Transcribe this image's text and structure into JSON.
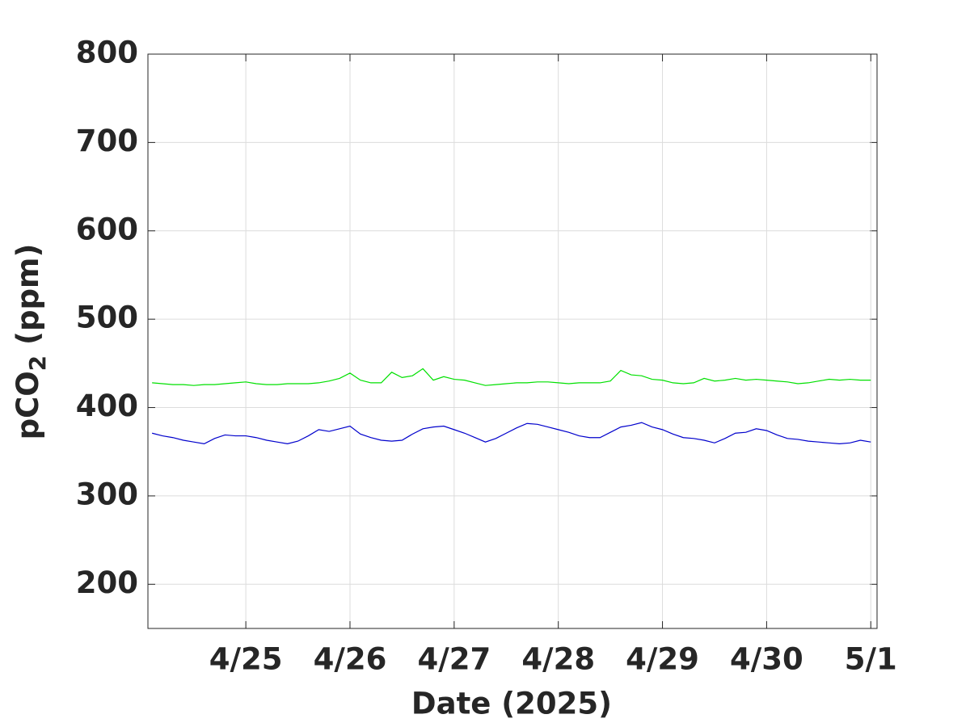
{
  "chart_data": {
    "type": "line",
    "xlabel": "Date (2025)",
    "ylabel": [
      "pCO",
      "2",
      " (ppm)"
    ],
    "x": [
      114.1,
      114.2,
      114.3,
      114.4,
      114.5,
      114.6,
      114.7,
      114.8,
      114.9,
      115.0,
      115.1,
      115.2,
      115.3,
      115.4,
      115.5,
      115.6,
      115.7,
      115.8,
      115.9,
      116.0,
      116.1,
      116.2,
      116.3,
      116.4,
      116.5,
      116.6,
      116.7,
      116.8,
      116.9,
      117.0,
      117.1,
      117.2,
      117.3,
      117.4,
      117.5,
      117.6,
      117.7,
      117.8,
      117.9,
      118.0,
      118.1,
      118.2,
      118.3,
      118.4,
      118.5,
      118.6,
      118.7,
      118.8,
      118.9,
      119.0,
      119.1,
      119.2,
      119.3,
      119.4,
      119.5,
      119.6,
      119.7,
      119.8,
      119.9,
      120.0,
      120.1,
      120.2,
      120.3,
      120.4,
      120.5,
      120.6,
      120.7,
      120.8,
      120.9,
      121.0
    ],
    "series": [
      {
        "color": "#00e000",
        "values": [
          428,
          427,
          426,
          426,
          425,
          426,
          426,
          427,
          428,
          429,
          427,
          426,
          426,
          427,
          427,
          427,
          428,
          430,
          433,
          439,
          431,
          428,
          428,
          440,
          434,
          436,
          444,
          431,
          435,
          432,
          431,
          428,
          425,
          426,
          427,
          428,
          428,
          429,
          429,
          428,
          427,
          428,
          428,
          428,
          430,
          442,
          437,
          436,
          432,
          431,
          428,
          427,
          428,
          433,
          430,
          431,
          433,
          431,
          432,
          431,
          430,
          429,
          427,
          428,
          430,
          432,
          431,
          432,
          431,
          431
        ]
      },
      {
        "color": "#0000cc",
        "values": [
          371,
          368,
          366,
          363,
          361,
          359,
          365,
          369,
          368,
          368,
          366,
          363,
          361,
          359,
          362,
          368,
          375,
          373,
          376,
          379,
          370,
          366,
          363,
          362,
          363,
          370,
          376,
          378,
          379,
          375,
          371,
          366,
          361,
          365,
          371,
          377,
          382,
          381,
          378,
          375,
          372,
          368,
          366,
          366,
          372,
          378,
          380,
          383,
          378,
          375,
          370,
          366,
          365,
          363,
          360,
          365,
          371,
          372,
          376,
          374,
          369,
          365,
          364,
          362,
          361,
          360,
          359,
          360,
          363,
          361
        ]
      }
    ],
    "xlim": [
      114.06,
      121.06
    ],
    "xticks": [
      {
        "value": 115,
        "label": "4/25"
      },
      {
        "value": 116,
        "label": "4/26"
      },
      {
        "value": 117,
        "label": "4/27"
      },
      {
        "value": 118,
        "label": "4/28"
      },
      {
        "value": 119,
        "label": "4/29"
      },
      {
        "value": 120,
        "label": "4/30"
      },
      {
        "value": 121,
        "label": "5/1"
      }
    ],
    "ylim": [
      150,
      800
    ],
    "yticks": [
      200,
      300,
      400,
      500,
      600,
      700,
      800
    ],
    "grid": true
  }
}
